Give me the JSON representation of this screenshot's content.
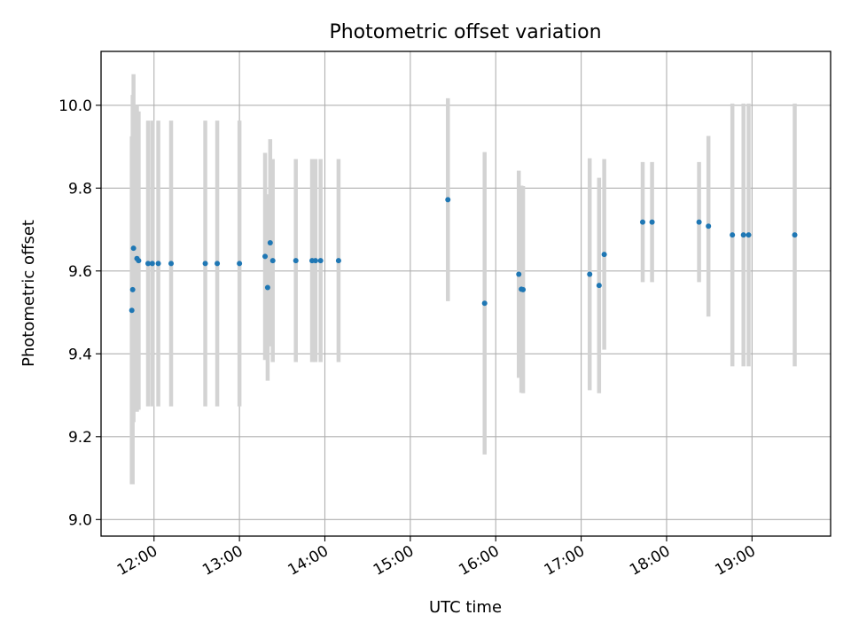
{
  "chart_data": {
    "type": "scatter",
    "title": "Photometric offset variation",
    "xlabel": "UTC time",
    "ylabel": "Photometric offset",
    "x_unit": "hours UTC",
    "xlim": [
      11.38,
      19.92
    ],
    "ylim": [
      8.96,
      10.13
    ],
    "x_ticks": [
      {
        "value": 12,
        "label": "12:00"
      },
      {
        "value": 13,
        "label": "13:00"
      },
      {
        "value": 14,
        "label": "14:00"
      },
      {
        "value": 15,
        "label": "15:00"
      },
      {
        "value": 16,
        "label": "16:00"
      },
      {
        "value": 17,
        "label": "17:00"
      },
      {
        "value": 18,
        "label": "18:00"
      },
      {
        "value": 19,
        "label": "19:00"
      }
    ],
    "y_ticks": [
      {
        "value": 9.0,
        "label": "9.0"
      },
      {
        "value": 9.2,
        "label": "9.2"
      },
      {
        "value": 9.4,
        "label": "9.4"
      },
      {
        "value": 9.6,
        "label": "9.6"
      },
      {
        "value": 9.8,
        "label": "9.8"
      },
      {
        "value": 10.0,
        "label": "10.0"
      }
    ],
    "grid": true,
    "point_color": "#1f77b4",
    "errorbar_color": "#d3d3d3",
    "points": [
      {
        "x": 11.74,
        "y": 9.505,
        "err": 0.42
      },
      {
        "x": 11.75,
        "y": 9.555,
        "err": 0.47
      },
      {
        "x": 11.76,
        "y": 9.655,
        "err": 0.42
      },
      {
        "x": 11.8,
        "y": 9.63,
        "err": 0.37
      },
      {
        "x": 11.82,
        "y": 9.625,
        "err": 0.36
      },
      {
        "x": 11.93,
        "y": 9.618,
        "err": 0.345
      },
      {
        "x": 11.98,
        "y": 9.618,
        "err": 0.345
      },
      {
        "x": 12.05,
        "y": 9.618,
        "err": 0.345
      },
      {
        "x": 12.2,
        "y": 9.618,
        "err": 0.345
      },
      {
        "x": 12.6,
        "y": 9.618,
        "err": 0.345
      },
      {
        "x": 12.74,
        "y": 9.618,
        "err": 0.345
      },
      {
        "x": 13.0,
        "y": 9.618,
        "err": 0.345
      },
      {
        "x": 13.3,
        "y": 9.635,
        "err": 0.25
      },
      {
        "x": 13.33,
        "y": 9.56,
        "err": 0.225
      },
      {
        "x": 13.36,
        "y": 9.668,
        "err": 0.25
      },
      {
        "x": 13.39,
        "y": 9.625,
        "err": 0.245
      },
      {
        "x": 13.66,
        "y": 9.625,
        "err": 0.245
      },
      {
        "x": 13.85,
        "y": 9.625,
        "err": 0.245
      },
      {
        "x": 13.89,
        "y": 9.625,
        "err": 0.245
      },
      {
        "x": 13.95,
        "y": 9.625,
        "err": 0.245
      },
      {
        "x": 14.16,
        "y": 9.625,
        "err": 0.245
      },
      {
        "x": 15.44,
        "y": 9.772,
        "err": 0.245
      },
      {
        "x": 15.87,
        "y": 9.522,
        "err": 0.365
      },
      {
        "x": 16.27,
        "y": 9.592,
        "err": 0.25
      },
      {
        "x": 16.3,
        "y": 9.556,
        "err": 0.25
      },
      {
        "x": 16.32,
        "y": 9.555,
        "err": 0.25
      },
      {
        "x": 17.1,
        "y": 9.592,
        "err": 0.28
      },
      {
        "x": 17.21,
        "y": 9.565,
        "err": 0.26
      },
      {
        "x": 17.27,
        "y": 9.64,
        "err": 0.23
      },
      {
        "x": 17.72,
        "y": 9.718,
        "err": 0.145
      },
      {
        "x": 17.83,
        "y": 9.718,
        "err": 0.145
      },
      {
        "x": 18.38,
        "y": 9.718,
        "err": 0.145
      },
      {
        "x": 18.49,
        "y": 9.708,
        "err": 0.218
      },
      {
        "x": 18.77,
        "y": 9.687,
        "err": 0.317
      },
      {
        "x": 18.9,
        "y": 9.687,
        "err": 0.317
      },
      {
        "x": 18.96,
        "y": 9.687,
        "err": 0.317
      },
      {
        "x": 19.5,
        "y": 9.687,
        "err": 0.317
      }
    ]
  }
}
